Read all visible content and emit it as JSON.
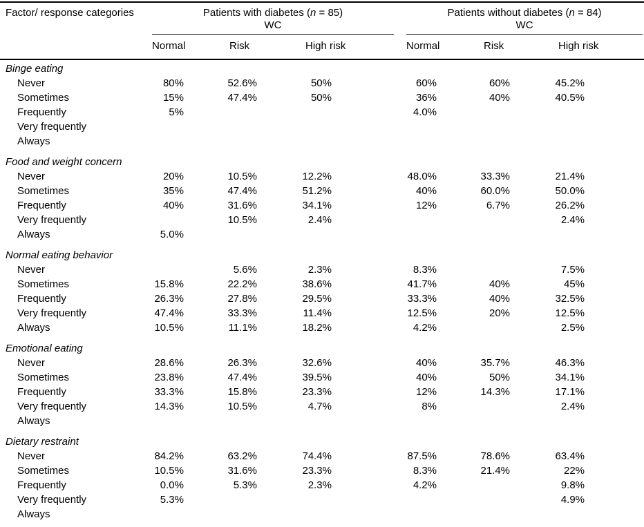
{
  "table": {
    "factor_header": "Factor/ response categories",
    "groups": [
      {
        "title_pre": "Patients with diabetes (",
        "title_n": "n",
        "title_post": " = 85)",
        "subtitle": "WC",
        "columns": [
          "Normal",
          "Risk",
          "High risk"
        ]
      },
      {
        "title_pre": "Patients without diabetes (",
        "title_n": "n",
        "title_post": " = 84)",
        "subtitle": "WC",
        "columns": [
          "Normal",
          "Risk",
          "High risk"
        ]
      }
    ],
    "sections": [
      {
        "name": "Binge eating",
        "rows": [
          {
            "label": "Never",
            "values": [
              "80%",
              "52.6%",
              "50%",
              "60%",
              "60%",
              "45.2%"
            ]
          },
          {
            "label": "Sometimes",
            "values": [
              "15%",
              "47.4%",
              "50%",
              "36%",
              "40%",
              "40.5%"
            ]
          },
          {
            "label": "Frequently",
            "values": [
              "5%",
              "",
              "",
              "4.0%",
              "",
              ""
            ]
          },
          {
            "label": "Very frequently",
            "values": [
              "",
              "",
              "",
              "",
              "",
              ""
            ]
          },
          {
            "label": "Always",
            "values": [
              "",
              "",
              "",
              "",
              "",
              ""
            ]
          }
        ]
      },
      {
        "name": "Food and weight concern",
        "rows": [
          {
            "label": "Never",
            "values": [
              "20%",
              "10.5%",
              "12.2%",
              "48.0%",
              "33.3%",
              "21.4%"
            ]
          },
          {
            "label": "Sometimes",
            "values": [
              "35%",
              "47.4%",
              "51.2%",
              "40%",
              "60.0%",
              "50.0%"
            ]
          },
          {
            "label": "Frequently",
            "values": [
              "40%",
              "31.6%",
              "34.1%",
              "12%",
              "6.7%",
              "26.2%"
            ]
          },
          {
            "label": "Very frequently",
            "values": [
              "",
              "10.5%",
              "2.4%",
              "",
              "",
              "2.4%"
            ]
          },
          {
            "label": "Always",
            "values": [
              "5.0%",
              "",
              "",
              "",
              "",
              ""
            ]
          }
        ]
      },
      {
        "name": "Normal eating behavior",
        "rows": [
          {
            "label": "Never",
            "values": [
              "",
              "5.6%",
              "2.3%",
              "8.3%",
              "",
              "7.5%"
            ]
          },
          {
            "label": "Sometimes",
            "values": [
              "15.8%",
              "22.2%",
              "38.6%",
              "41.7%",
              "40%",
              "45%"
            ]
          },
          {
            "label": "Frequently",
            "values": [
              "26.3%",
              "27.8%",
              "29.5%",
              "33.3%",
              "40%",
              "32.5%"
            ]
          },
          {
            "label": "Very frequently",
            "values": [
              "47.4%",
              "33.3%",
              "11.4%",
              "12.5%",
              "20%",
              "12.5%"
            ]
          },
          {
            "label": "Always",
            "values": [
              "10.5%",
              "11.1%",
              "18.2%",
              "4.2%",
              "",
              "2.5%"
            ]
          }
        ]
      },
      {
        "name": "Emotional eating",
        "rows": [
          {
            "label": "Never",
            "values": [
              "28.6%",
              "26.3%",
              "32.6%",
              "40%",
              "35.7%",
              "46.3%"
            ]
          },
          {
            "label": "Sometimes",
            "values": [
              "23.8%",
              "47.4%",
              "39.5%",
              "40%",
              "50%",
              "34.1%"
            ]
          },
          {
            "label": "Frequently",
            "values": [
              "33.3%",
              "15.8%",
              "23.3%",
              "12%",
              "14.3%",
              "17.1%"
            ]
          },
          {
            "label": "Very frequently",
            "values": [
              "14.3%",
              "10.5%",
              "4.7%",
              "8%",
              "",
              "2.4%"
            ]
          },
          {
            "label": "Always",
            "values": [
              "",
              "",
              "",
              "",
              "",
              ""
            ]
          }
        ]
      },
      {
        "name": "Dietary restraint",
        "rows": [
          {
            "label": "Never",
            "values": [
              "84.2%",
              "63.2%",
              "74.4%",
              "87.5%",
              "78.6%",
              "63.4%"
            ]
          },
          {
            "label": "Sometimes",
            "values": [
              "10.5%",
              "31.6%",
              "23.3%",
              "8.3%",
              "21.4%",
              "22%"
            ]
          },
          {
            "label": "Frequently",
            "values": [
              "0.0%",
              "5.3%",
              "2.3%",
              "4.2%",
              "",
              "9.8%"
            ]
          },
          {
            "label": "Very frequently",
            "values": [
              "5.3%",
              "",
              "",
              "",
              "",
              "4.9%"
            ]
          },
          {
            "label": "Always",
            "values": [
              "",
              "",
              "",
              "",
              "",
              ""
            ]
          }
        ]
      }
    ]
  }
}
